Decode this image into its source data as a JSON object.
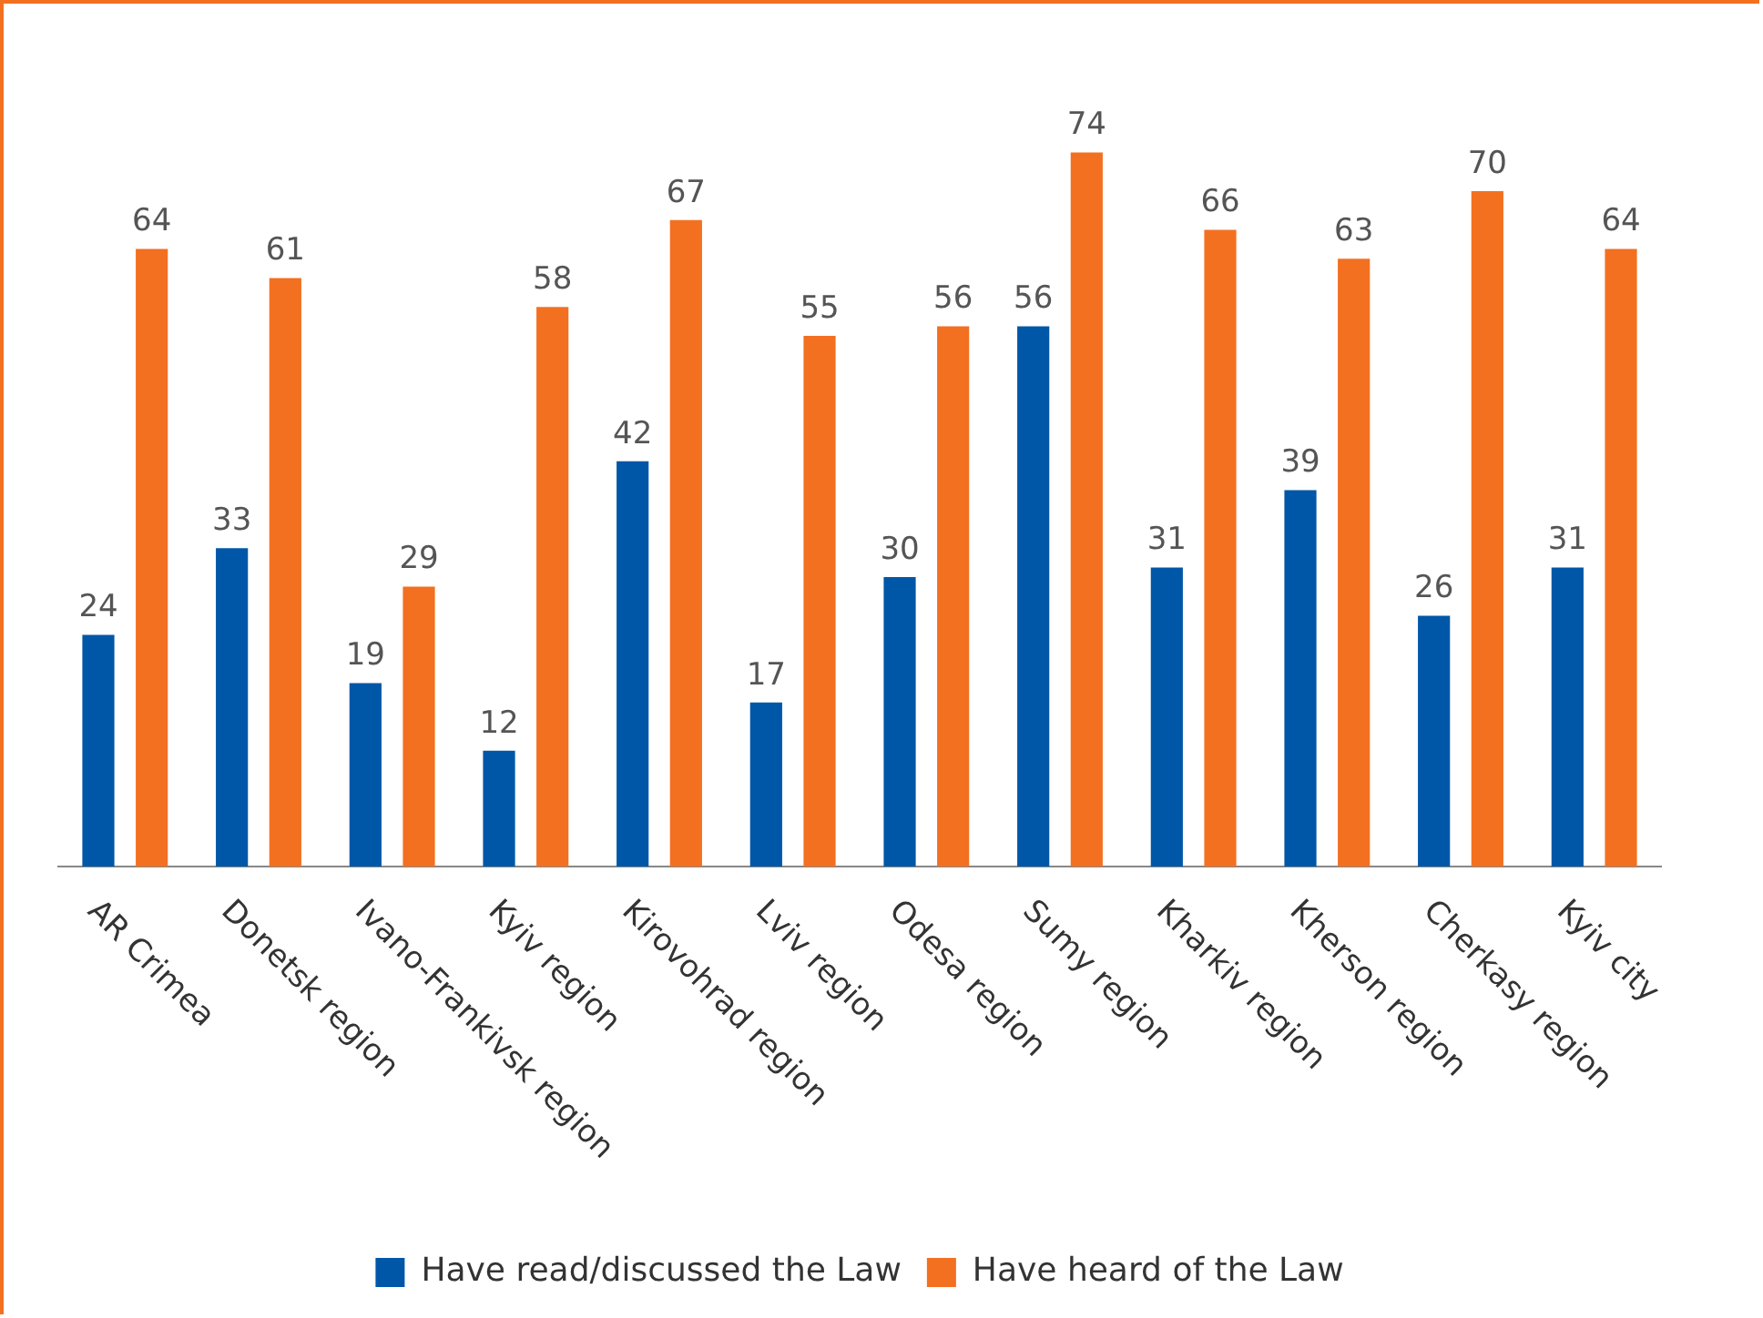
{
  "chart_data": {
    "type": "bar",
    "categories": [
      "AR Crimea",
      "Donetsk region",
      "Ivano-Frankivsk region",
      "Kyiv region",
      "Kirovohrad region",
      "Lviv region",
      "Odesa region",
      "Sumy region",
      "Kharkiv region",
      "Kherson region",
      "Cherkasy region",
      "Kyiv city"
    ],
    "series": [
      {
        "name": "Have read/discussed the Law",
        "color": "#0057a8",
        "values": [
          24,
          33,
          19,
          12,
          42,
          17,
          30,
          56,
          31,
          39,
          26,
          31
        ]
      },
      {
        "name": "Have heard of the Law",
        "color": "#f37021",
        "values": [
          64,
          61,
          29,
          58,
          67,
          55,
          56,
          74,
          66,
          63,
          70,
          64
        ]
      }
    ],
    "data_labels": true,
    "legend": "bottom",
    "grid": false
  }
}
